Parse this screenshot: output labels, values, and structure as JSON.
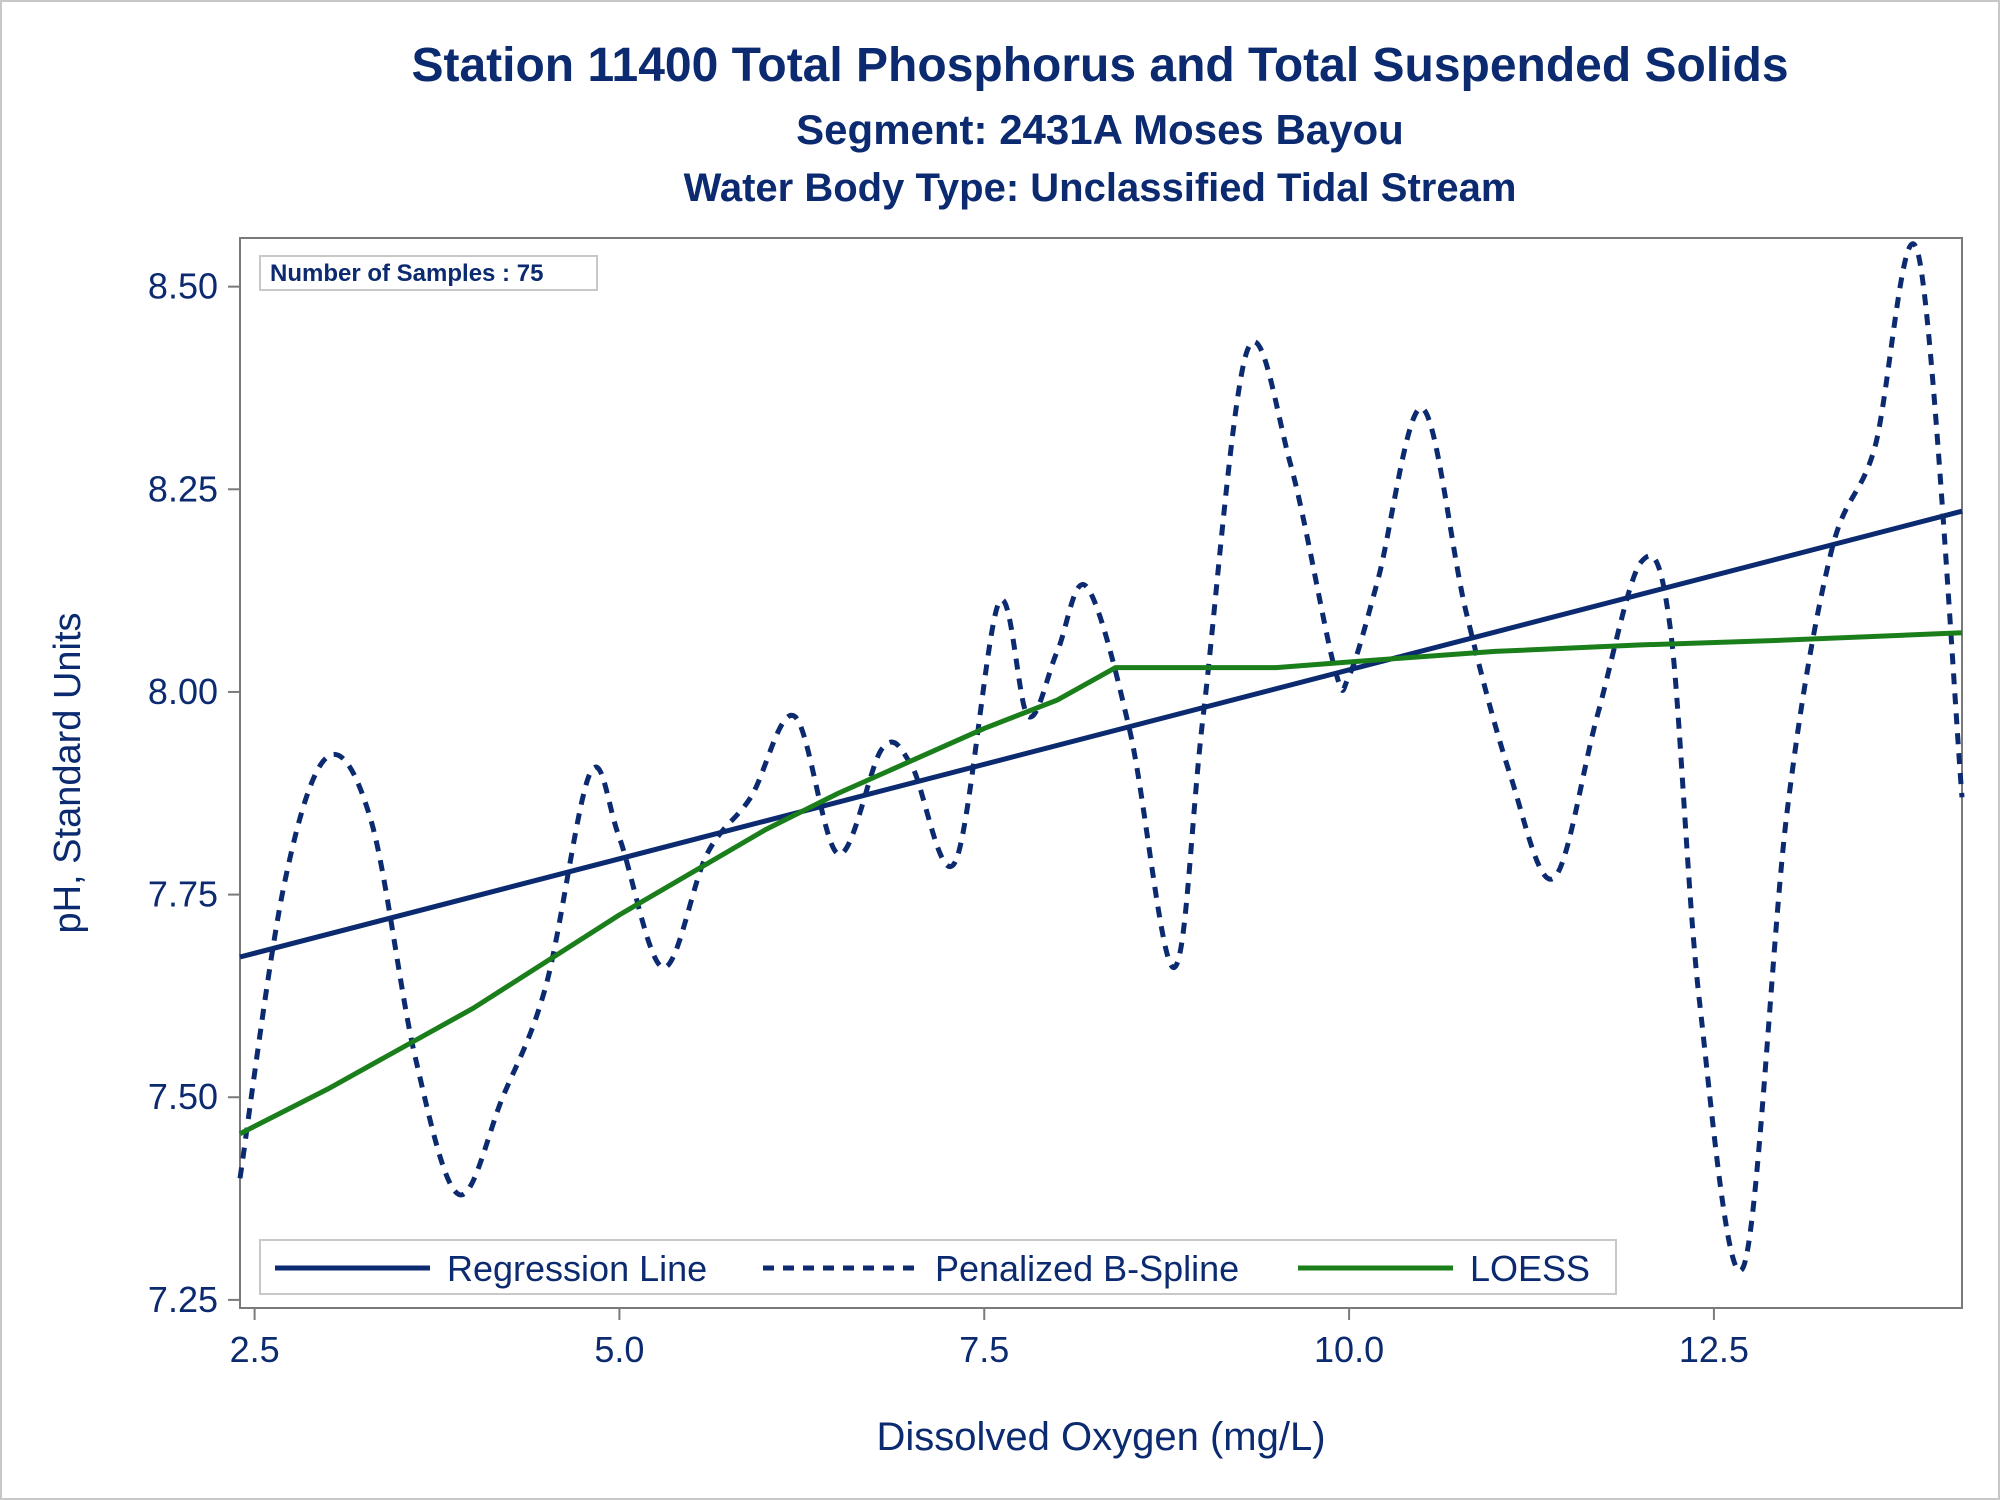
{
  "titles": {
    "title": "Station 11400  Total Phosphorus and Total Suspended Solids",
    "subtitle": "Segment: 2431A  Moses Bayou",
    "subtitle2": "Water Body Type: Unclassified Tidal Stream"
  },
  "inset_label": "Number of Samples : 75",
  "colors": {
    "text": "#0b2a6f",
    "regression": "#0b2a6f",
    "spline": "#0b2a6f",
    "loess": "#1a7f1a",
    "axis": "#7a7a7a"
  },
  "chart_data": {
    "type": "line",
    "xlabel": "Dissolved Oxygen (mg/L)",
    "ylabel": "pH, Standard Units",
    "xlim": [
      2.4,
      14.2
    ],
    "ylim": [
      7.24,
      8.56
    ],
    "xticks": [
      "2.5",
      "5.0",
      "7.5",
      "10.0",
      "12.5"
    ],
    "xtick_values": [
      2.5,
      5.0,
      7.5,
      10.0,
      12.5
    ],
    "yticks": [
      "7.25",
      "7.50",
      "7.75",
      "8.00",
      "8.25",
      "8.50"
    ],
    "ytick_values": [
      7.25,
      7.5,
      7.75,
      8.0,
      8.25,
      8.5
    ],
    "legend_position": "bottom-left inside",
    "series": [
      {
        "name": "Regression Line",
        "style": "solid",
        "x": [
          2.4,
          14.2
        ],
        "y": [
          7.673,
          8.223
        ]
      },
      {
        "name": "Penalized B-Spline",
        "style": "dashed",
        "x": [
          2.4,
          2.7,
          3.0,
          3.3,
          3.6,
          3.9,
          4.2,
          4.5,
          4.8,
          5.0,
          5.3,
          5.6,
          5.9,
          6.2,
          6.5,
          6.8,
          7.0,
          7.3,
          7.6,
          7.8,
          8.0,
          8.2,
          8.5,
          8.8,
          9.0,
          9.3,
          9.6,
          9.9,
          10.0,
          10.2,
          10.5,
          10.8,
          11.1,
          11.4,
          11.7,
          12.0,
          12.2,
          12.4,
          12.7,
          13.0,
          13.3,
          13.6,
          13.9,
          14.2
        ],
        "y": [
          7.4,
          7.76,
          7.92,
          7.84,
          7.55,
          7.38,
          7.5,
          7.64,
          7.9,
          7.82,
          7.66,
          7.8,
          7.87,
          7.97,
          7.8,
          7.93,
          7.91,
          7.79,
          8.11,
          7.97,
          8.05,
          8.13,
          7.95,
          7.66,
          7.97,
          8.42,
          8.28,
          8.03,
          8.02,
          8.14,
          8.35,
          8.1,
          7.9,
          7.77,
          7.97,
          8.16,
          8.08,
          7.62,
          7.29,
          7.85,
          8.17,
          8.3,
          8.54,
          7.87
        ]
      },
      {
        "name": "LOESS",
        "style": "solid",
        "x": [
          2.4,
          3.0,
          4.0,
          5.0,
          6.0,
          6.5,
          7.0,
          7.5,
          8.0,
          8.4,
          9.0,
          9.5,
          10.0,
          11.0,
          12.0,
          13.0,
          14.2
        ],
        "y": [
          7.455,
          7.51,
          7.61,
          7.725,
          7.83,
          7.875,
          7.915,
          7.955,
          7.99,
          8.03,
          8.03,
          8.03,
          8.037,
          8.05,
          8.058,
          8.064,
          8.073
        ]
      }
    ]
  }
}
